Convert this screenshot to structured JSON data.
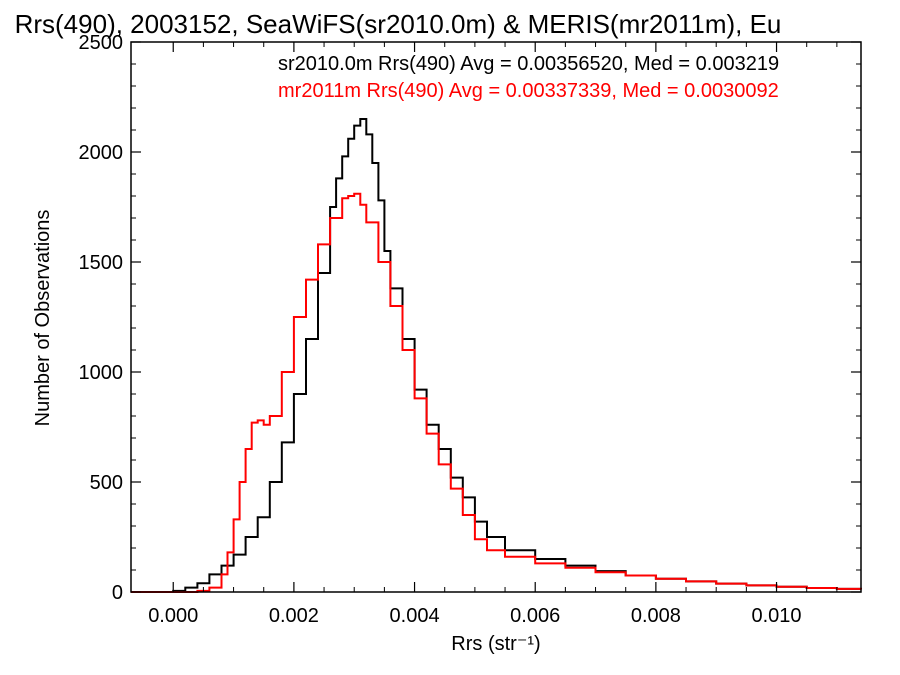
{
  "chart_data": {
    "type": "line",
    "title": "Rrs(490), 2003152, SeaWiFS(sr2010.0m) & MERIS(mr2011m), Eu",
    "xlabel": "Rrs (str⁻¹)",
    "ylabel": "Number of Observations",
    "xlim": [
      -0.0007,
      0.0114
    ],
    "ylim": [
      0,
      2500
    ],
    "xticks": [
      0.0,
      0.002,
      0.004,
      0.006,
      0.008,
      0.01
    ],
    "xtick_labels": [
      "0.000",
      "0.002",
      "0.004",
      "0.006",
      "0.008",
      "0.010"
    ],
    "yticks": [
      0,
      500,
      1000,
      1500,
      2000,
      2500
    ],
    "ytick_labels": [
      "0",
      "500",
      "1000",
      "1500",
      "2000",
      "2500"
    ],
    "step_style": "histogram",
    "grid": false,
    "series": [
      {
        "name": "sr2010.0m",
        "color": "#000000",
        "legend": "sr2010.0m Rrs(490) Avg = 0.00356520, Med = 0.003219",
        "x": [
          -0.0007,
          -0.0001,
          0.0,
          0.0002,
          0.0004,
          0.0006,
          0.0008,
          0.001,
          0.0012,
          0.0014,
          0.0016,
          0.0018,
          0.002,
          0.0022,
          0.0024,
          0.0026,
          0.0027,
          0.0028,
          0.0029,
          0.003,
          0.0031,
          0.0032,
          0.0033,
          0.0034,
          0.0035,
          0.0036,
          0.0038,
          0.004,
          0.0042,
          0.0044,
          0.0046,
          0.0048,
          0.005,
          0.0052,
          0.0055,
          0.006,
          0.0065,
          0.007,
          0.0075,
          0.008,
          0.0085,
          0.009,
          0.0095,
          0.01,
          0.0105,
          0.011,
          0.0114
        ],
        "y": [
          0,
          0,
          5,
          20,
          40,
          80,
          120,
          170,
          250,
          340,
          500,
          680,
          900,
          1150,
          1450,
          1750,
          1880,
          1980,
          2060,
          2120,
          2150,
          2080,
          1950,
          1780,
          1550,
          1380,
          1150,
          920,
          760,
          650,
          520,
          430,
          320,
          250,
          190,
          150,
          120,
          95,
          75,
          60,
          48,
          38,
          30,
          24,
          18,
          14,
          12
        ]
      },
      {
        "name": "mr2011m",
        "color": "#ff0000",
        "legend": "mr2011m Rrs(490) Avg = 0.00337339, Med = 0.0030092",
        "x": [
          -0.0007,
          0.0002,
          0.0004,
          0.0006,
          0.0008,
          0.0009,
          0.001,
          0.0011,
          0.0012,
          0.0013,
          0.0014,
          0.0015,
          0.0016,
          0.0018,
          0.002,
          0.0022,
          0.0024,
          0.0026,
          0.0028,
          0.0029,
          0.003,
          0.0031,
          0.0032,
          0.0034,
          0.0036,
          0.0038,
          0.004,
          0.0042,
          0.0044,
          0.0046,
          0.0048,
          0.005,
          0.0052,
          0.0055,
          0.006,
          0.0065,
          0.007,
          0.0075,
          0.008,
          0.0085,
          0.009,
          0.0095,
          0.01,
          0.0105,
          0.011,
          0.0114
        ],
        "y": [
          0,
          0,
          5,
          20,
          80,
          180,
          330,
          500,
          650,
          770,
          780,
          760,
          800,
          1000,
          1250,
          1420,
          1580,
          1700,
          1790,
          1800,
          1810,
          1760,
          1680,
          1500,
          1300,
          1100,
          880,
          720,
          580,
          470,
          350,
          240,
          190,
          160,
          130,
          110,
          90,
          75,
          60,
          48,
          38,
          30,
          24,
          18,
          14,
          12
        ]
      }
    ]
  }
}
